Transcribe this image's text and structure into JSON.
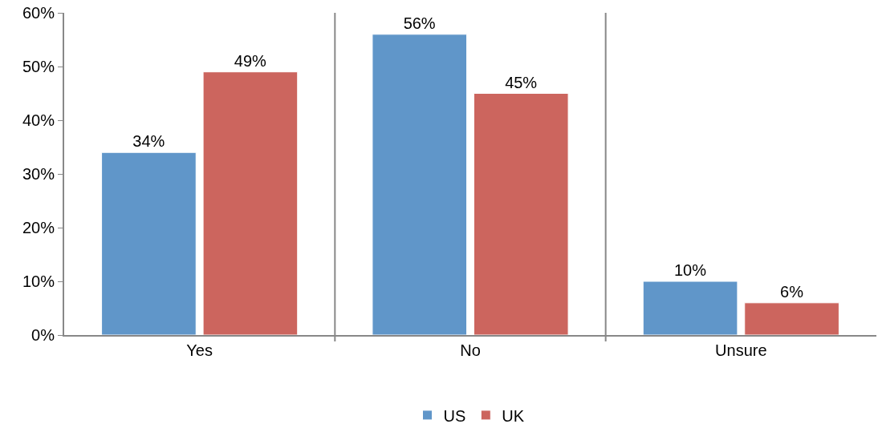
{
  "chart_data": {
    "type": "bar",
    "categories": [
      "Yes",
      "No",
      "Unsure"
    ],
    "series": [
      {
        "name": "US",
        "color": "#6096c9",
        "values": [
          34,
          56,
          10
        ],
        "value_labels": [
          "34%",
          "56%",
          "10%"
        ]
      },
      {
        "name": "UK",
        "color": "#cc655e",
        "values": [
          49,
          45,
          6
        ],
        "value_labels": [
          "49%",
          "45%",
          "6%"
        ]
      }
    ],
    "ylim": [
      0,
      60
    ],
    "yticks": [
      {
        "value": 0,
        "label": "0%"
      },
      {
        "value": 10,
        "label": "10%"
      },
      {
        "value": 20,
        "label": "20%"
      },
      {
        "value": 30,
        "label": "30%"
      },
      {
        "value": 40,
        "label": "40%"
      },
      {
        "value": 50,
        "label": "50%"
      },
      {
        "value": 60,
        "label": "60%"
      }
    ],
    "grid": "x",
    "legend": "bottom"
  }
}
